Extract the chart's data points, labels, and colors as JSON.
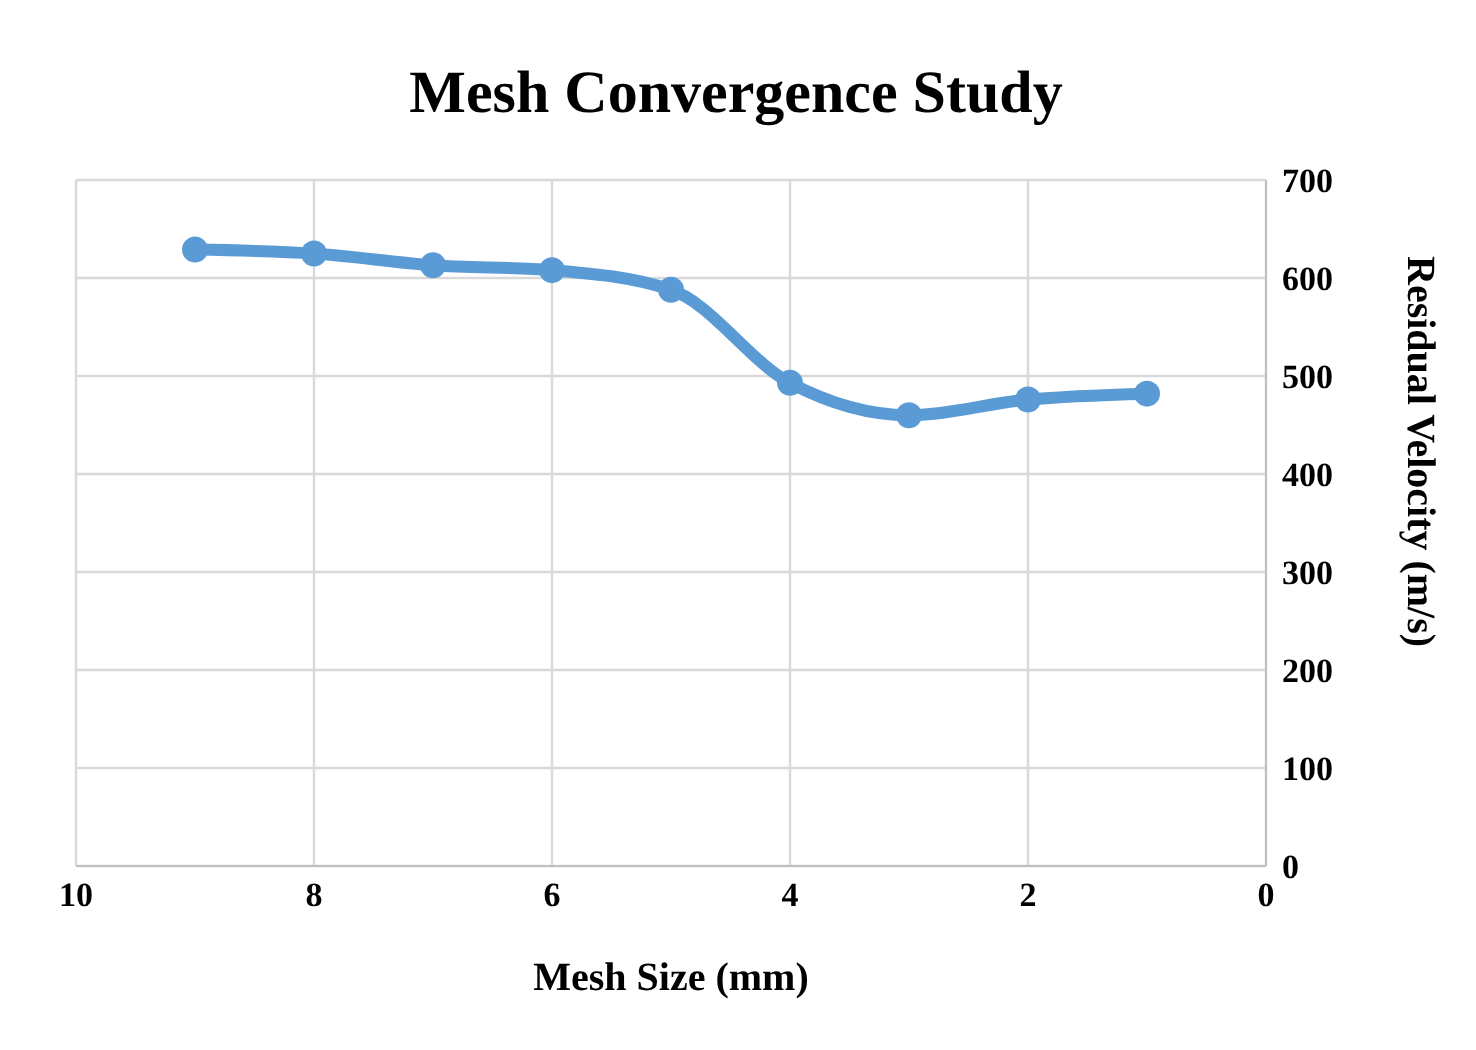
{
  "chart_data": {
    "type": "line",
    "title": "Mesh Convergence Study",
    "xlabel": "Mesh Size (mm)",
    "ylabel": "Residual Velocity (m/s)",
    "x": [
      9,
      8,
      7,
      6,
      5,
      4,
      3,
      2,
      1
    ],
    "series": [
      {
        "color": "#5b9bd5",
        "values": [
          629,
          625,
          613,
          608,
          588,
          493,
          460,
          476,
          482
        ]
      }
    ],
    "xlim": [
      10,
      0
    ],
    "xticks": [
      10,
      8,
      6,
      4,
      2,
      0
    ],
    "ylim": [
      0,
      700
    ],
    "yticks": [
      0,
      100,
      200,
      300,
      400,
      500,
      600,
      700
    ],
    "grid": true,
    "marker": "circle",
    "line_style": "solid"
  }
}
